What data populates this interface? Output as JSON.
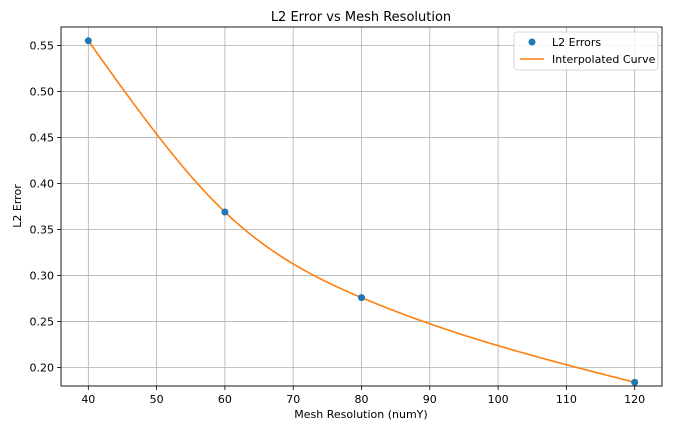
{
  "chart_data": {
    "type": "line",
    "title": "L2 Error vs Mesh Resolution",
    "xlabel": "Mesh Resolution (numY)",
    "ylabel": "L2 Error",
    "xlim": [
      36,
      124
    ],
    "ylim": [
      0.18,
      0.57
    ],
    "x_ticks": [
      40,
      50,
      60,
      70,
      80,
      90,
      100,
      110,
      120
    ],
    "y_ticks": [
      0.2,
      0.25,
      0.3,
      0.35,
      0.4,
      0.45,
      0.5,
      0.55
    ],
    "x_tick_labels": [
      "40",
      "50",
      "60",
      "70",
      "80",
      "90",
      "100",
      "110",
      "120"
    ],
    "y_tick_labels": [
      "0.20",
      "0.25",
      "0.30",
      "0.35",
      "0.40",
      "0.45",
      "0.50",
      "0.55"
    ],
    "grid": true,
    "legend_position": "top-right",
    "series": [
      {
        "name": "L2 Errors",
        "kind": "scatter",
        "color": "#1f77b4",
        "x": [
          40,
          60,
          80,
          120
        ],
        "y": [
          0.555,
          0.369,
          0.276,
          0.184
        ]
      },
      {
        "name": "Interpolated Curve",
        "kind": "line",
        "color": "#ff7f0e",
        "x": [
          40,
          60,
          80,
          120
        ],
        "y": [
          0.555,
          0.369,
          0.276,
          0.184
        ]
      }
    ]
  }
}
